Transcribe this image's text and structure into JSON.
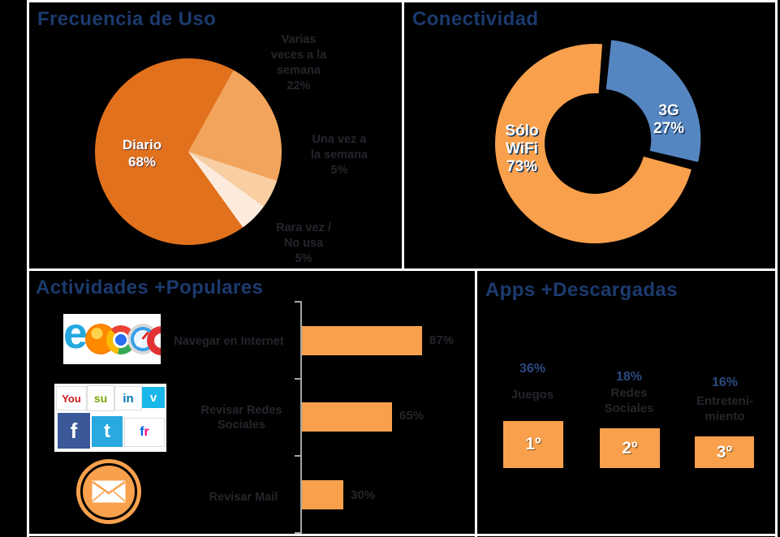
{
  "palette": {
    "title_navy": "#1C3A6E",
    "pie_dark_orange": "#E2711D",
    "pie_light_orange": "#F2A45C",
    "pie_pale_orange": "#F8CEA2",
    "pie_cream": "#FCEBDC",
    "accent_orange": "#F9A04C",
    "accent_blue": "#5586C1",
    "dim_label": "#23262b",
    "pct_navy": "#2B4A80"
  },
  "frecuencia": {
    "title": "Frecuencia de Uso",
    "center_label": "Diario\n68%",
    "label_varias": "Varias\nveces a la\nsemana\n22%",
    "label_una": "Una vez a\nla semana\n5%",
    "label_rara": "Rara vez /\nNo usa\n5%"
  },
  "conectividad": {
    "title": "Conectividad",
    "label_wifi": "Sólo\nWiFi\n73%",
    "label_3g": "3G\n27%"
  },
  "actividades": {
    "title": "Actividades +Populares",
    "rows": [
      {
        "label": "Navegar en Internet",
        "value_label": "87%"
      },
      {
        "label": "Revisar Redes\nSociales",
        "value_label": "65%"
      },
      {
        "label": "Revisar Mail",
        "value_label": "30%"
      }
    ]
  },
  "apps": {
    "title": "Apps +Descargadas",
    "items": [
      {
        "pct": "36%",
        "label": "Juegos",
        "rank": "1º"
      },
      {
        "pct": "18%",
        "label": "Redes\nSociales",
        "rank": "2º"
      },
      {
        "pct": "16%",
        "label": "Entreteni-\nmiento",
        "rank": "3º"
      }
    ]
  },
  "icons": {
    "ie": "e",
    "opera": "O",
    "youtube": "You",
    "stumbleupon": "su",
    "linkedin": "in",
    "vimeo": "v",
    "facebook": "f",
    "twitter": "t",
    "flickr_f": "f",
    "flickr_r": "r"
  },
  "chart_data": [
    {
      "type": "pie",
      "title": "Frecuencia de Uso",
      "labels": [
        "Diario",
        "Varias veces a la semana",
        "Una vez a la semana",
        "Rara vez / No usa"
      ],
      "values": [
        68,
        22,
        5,
        5
      ],
      "unit": "%",
      "colors": [
        "#E2711D",
        "#F2A45C",
        "#F8CEA2",
        "#FCEBDC"
      ],
      "legend_position": "around-slices",
      "start_angle_deg_from_north": 29
    },
    {
      "type": "pie",
      "subtype": "donut",
      "title": "Conectividad",
      "labels": [
        "Sólo WiFi",
        "3G"
      ],
      "values": [
        73,
        27
      ],
      "unit": "%",
      "colors": [
        "#F9A04C",
        "#5586C1"
      ],
      "exploded_slice": "3G"
    },
    {
      "type": "bar",
      "orientation": "horizontal",
      "title": "Actividades +Populares",
      "categories": [
        "Navegar en Internet",
        "Revisar Redes Sociales",
        "Revisar Mail"
      ],
      "values": [
        87,
        65,
        30
      ],
      "unit": "%",
      "xlim": [
        0,
        100
      ],
      "bar_color": "#F9A04C",
      "grid": false
    },
    {
      "type": "bar",
      "subtype": "podium",
      "title": "Apps +Descargadas",
      "categories": [
        "Juegos",
        "Redes Sociales",
        "Entretenimiento"
      ],
      "values": [
        36,
        18,
        16
      ],
      "ranks": [
        "1º",
        "2º",
        "3º"
      ],
      "unit": "%",
      "bar_color": "#F9A04C"
    }
  ]
}
